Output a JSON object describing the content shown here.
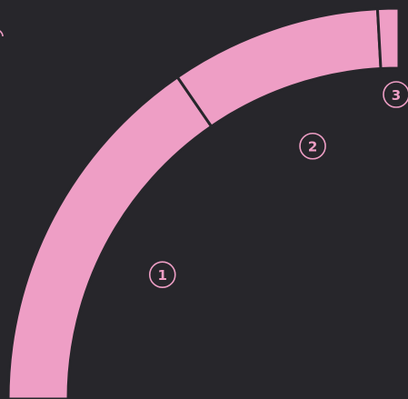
{
  "chart_data": {
    "type": "pie",
    "variant": "ring",
    "title": "",
    "slices": [
      {
        "label": "1",
        "value": 53
      },
      {
        "label": "2",
        "value": 30
      },
      {
        "label": "3",
        "value": 3
      }
    ]
  },
  "colors": {
    "background": "#27262b",
    "segment": "#ee9ec5",
    "marker": "#ee9ec5"
  }
}
